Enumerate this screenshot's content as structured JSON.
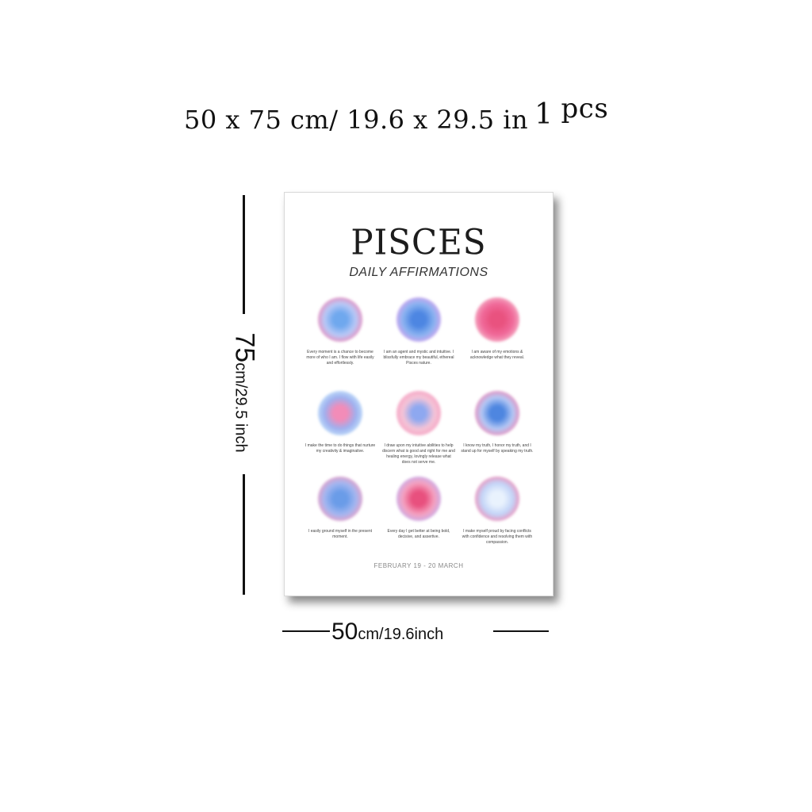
{
  "header": {
    "size_text": "50 x 75 cm/ 19.6 x 29.5 in",
    "qty_number": "1",
    "qty_unit": "pcs"
  },
  "poster": {
    "title": "PISCES",
    "subtitle": "DAILY AFFIRMATIONS",
    "footer": "FEBRUARY 19 - 20 MARCH",
    "affirmations": [
      {
        "text": "Every moment is a chance to become more of who I am. I flow with life easily and effortlessly.",
        "outer": "#f08ab8",
        "mid": "#b8c8f6",
        "inner": "#6fa8ee"
      },
      {
        "text": "I am an agent and mystic and intuitive. I blissfully embrace my beautiful, ethereal Pisces nature.",
        "outer": "#d9a7ef",
        "mid": "#8ab2f0",
        "inner": "#4d86e2"
      },
      {
        "text": "I am aware of my emotions & acknowledge what they reveal.",
        "outer": "#f5b3c9",
        "mid": "#f06a9a",
        "inner": "#e9527f"
      },
      {
        "text": "I make the time to do things that nurture my creativity & imaginative.",
        "outer": "#c6e4fb",
        "mid": "#9eb0ef",
        "inner": "#f28cb8"
      },
      {
        "text": "I draw upon my intuitive abilities to help discern what is good and right for me and healing energy, lovingly release what does not serve me.",
        "outer": "#f6a2c2",
        "mid": "#f4c4d7",
        "inner": "#8ea8f0"
      },
      {
        "text": "I know my truth, I honor my truth, and I stand up for myself by speaking my truth.",
        "outer": "#f18ab6",
        "mid": "#b4c7f4",
        "inner": "#4e86e0"
      },
      {
        "text": "I easily ground myself in the present moment.",
        "outer": "#f0a0c4",
        "mid": "#a3b6f0",
        "inner": "#6a9ce8"
      },
      {
        "text": "Every day I get better at being bold, decisive, and assertive.",
        "outer": "#c5b2f0",
        "mid": "#f4a0bf",
        "inner": "#e8507e"
      },
      {
        "text": "I make myself proud by facing conflicts with confidence and resolving them with compassion.",
        "outer": "#f48ab3",
        "mid": "#c3d4f7",
        "inner": "#e9f2fd"
      }
    ]
  },
  "dimensions": {
    "height_big": "75",
    "height_small": "cm/29.5 inch",
    "width_big": "50",
    "width_small": "cm/19.6inch"
  }
}
